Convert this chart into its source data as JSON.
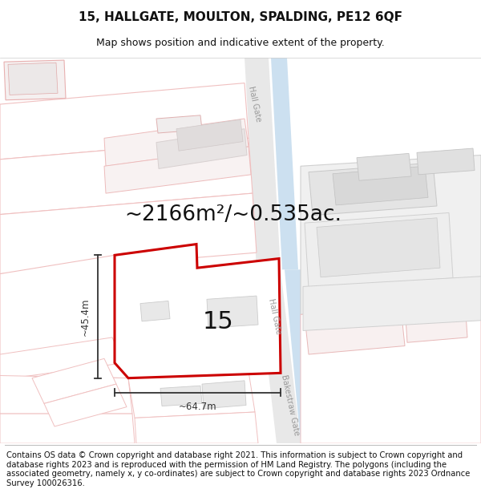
{
  "title": "15, HALLGATE, MOULTON, SPALDING, PE12 6QF",
  "subtitle": "Map shows position and indicative extent of the property.",
  "copyright": "Contains OS data © Crown copyright and database right 2021. This information is subject to Crown copyright and database rights 2023 and is reproduced with the permission of HM Land Registry. The polygons (including the associated geometry, namely x, y co-ordinates) are subject to Crown copyright and database rights 2023 Ordnance Survey 100026316.",
  "area_label": "~2166m²/~0.535ac.",
  "number_label": "15",
  "dim_width": "~64.7m",
  "dim_height": "~45.4m",
  "street1": "Hall Gate",
  "street2": "Hall Gate",
  "street3": "Bakestraw Gate",
  "bg_color": "#ffffff",
  "highlight_outline": "#cc0000",
  "water_color": "#cce0f0",
  "dim_color": "#333333",
  "road_label_color": "#999999",
  "title_fontsize": 11,
  "subtitle_fontsize": 9,
  "copyright_fontsize": 7.2,
  "area_fontsize": 19,
  "number_fontsize": 22
}
